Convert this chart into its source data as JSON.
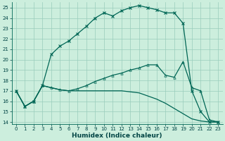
{
  "xlabel": "Humidex (Indice chaleur)",
  "bg_color": "#cceedd",
  "grid_color": "#99ccbb",
  "line_color": "#006655",
  "xlim": [
    -0.5,
    23.5
  ],
  "ylim": [
    13.8,
    25.5
  ],
  "xticks": [
    0,
    1,
    2,
    3,
    4,
    5,
    6,
    7,
    8,
    9,
    10,
    11,
    12,
    13,
    14,
    15,
    16,
    17,
    18,
    19,
    20,
    21,
    22,
    23
  ],
  "yticks": [
    14,
    15,
    16,
    17,
    18,
    19,
    20,
    21,
    22,
    23,
    24,
    25
  ],
  "line1_x": [
    0,
    1,
    2,
    3,
    4,
    5,
    6,
    7,
    8,
    9,
    10,
    11,
    12,
    13,
    14,
    15,
    16,
    17,
    18,
    19,
    20,
    21,
    22,
    23
  ],
  "line1_y": [
    17,
    15.5,
    16.0,
    17.5,
    20.5,
    21.3,
    21.8,
    22.5,
    23.2,
    24.0,
    24.5,
    24.2,
    24.7,
    25.0,
    25.2,
    25.0,
    24.8,
    24.5,
    24.5,
    23.5,
    17.0,
    15.0,
    14.0,
    14.0
  ],
  "line2_x": [
    0,
    1,
    2,
    3,
    4,
    5,
    6,
    7,
    8,
    9,
    10,
    11,
    12,
    13,
    14,
    15,
    16,
    17,
    18,
    19,
    20,
    21,
    22,
    23
  ],
  "line2_y": [
    17,
    15.5,
    16.0,
    17.5,
    17.3,
    17.1,
    17.0,
    17.0,
    17.0,
    17.0,
    17.0,
    17.0,
    17.0,
    16.9,
    16.8,
    16.5,
    16.2,
    15.8,
    15.3,
    14.8,
    14.3,
    14.1,
    14.0,
    14.0
  ],
  "line3_x": [
    0,
    1,
    2,
    3,
    4,
    5,
    6,
    7,
    8,
    9,
    10,
    11,
    12,
    13,
    14,
    15,
    16,
    17,
    18,
    19,
    20,
    21,
    22,
    23
  ],
  "line3_y": [
    17,
    15.5,
    16.0,
    17.5,
    17.3,
    17.1,
    17.0,
    17.2,
    17.5,
    17.9,
    18.2,
    18.5,
    18.7,
    19.0,
    19.2,
    19.5,
    19.5,
    18.5,
    18.3,
    19.8,
    17.3,
    17.0,
    14.2,
    14.0
  ],
  "xlabel_fontsize": 6.5,
  "tick_fontsize": 5.0,
  "linewidth": 0.9,
  "markersize": 2.5
}
